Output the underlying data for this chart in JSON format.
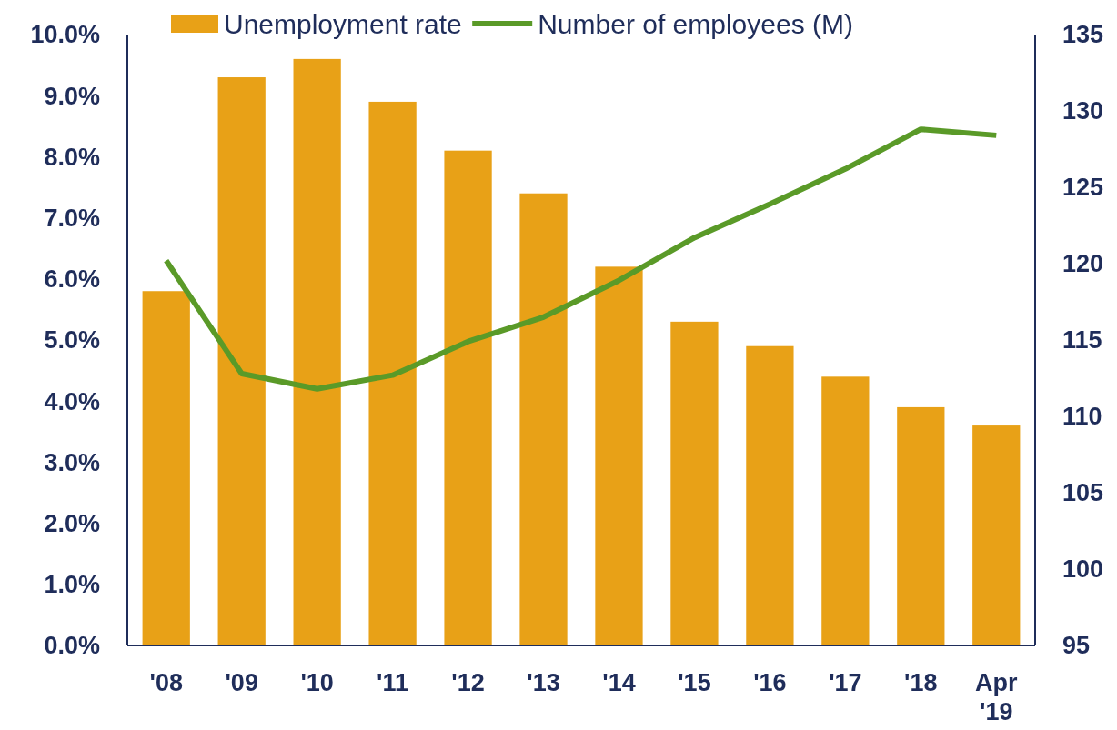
{
  "chart_data": {
    "type": "bar",
    "categories": [
      "'08",
      "'09",
      "'10",
      "'11",
      "'12",
      "'13",
      "'14",
      "'15",
      "'16",
      "'17",
      "'18",
      "Apr '19"
    ],
    "series": [
      {
        "name": "Unemployment rate",
        "color": "#e8a117",
        "values": [
          5.8,
          9.3,
          9.6,
          8.9,
          8.1,
          7.4,
          6.2,
          5.3,
          4.9,
          4.4,
          3.9,
          3.6
        ]
      },
      {
        "name": "Number of employees (M)",
        "type": "line",
        "axis": "y2",
        "color": "#5a9a28",
        "values": [
          120.2,
          112.8,
          111.8,
          112.7,
          114.9,
          116.5,
          118.9,
          121.7,
          123.9,
          126.2,
          128.8,
          128.4
        ]
      }
    ],
    "ylim": [
      0,
      10
    ],
    "yticks": [
      {
        "value": 0,
        "label": "0.0%"
      },
      {
        "value": 1,
        "label": "1.0%"
      },
      {
        "value": 2,
        "label": "2.0%"
      },
      {
        "value": 3,
        "label": "3.0%"
      },
      {
        "value": 4,
        "label": "4.0%"
      },
      {
        "value": 5,
        "label": "5.0%"
      },
      {
        "value": 6,
        "label": "6.0%"
      },
      {
        "value": 7,
        "label": "7.0%"
      },
      {
        "value": 8,
        "label": "8.0%"
      },
      {
        "value": 9,
        "label": "9.0%"
      },
      {
        "value": 10,
        "label": "10.0%"
      }
    ],
    "y2lim": [
      95,
      135
    ],
    "y2ticks": [
      95,
      100,
      105,
      110,
      115,
      120,
      125,
      130,
      135
    ],
    "grid": false,
    "legend": "top",
    "marker": "none",
    "line_style": "solid"
  }
}
